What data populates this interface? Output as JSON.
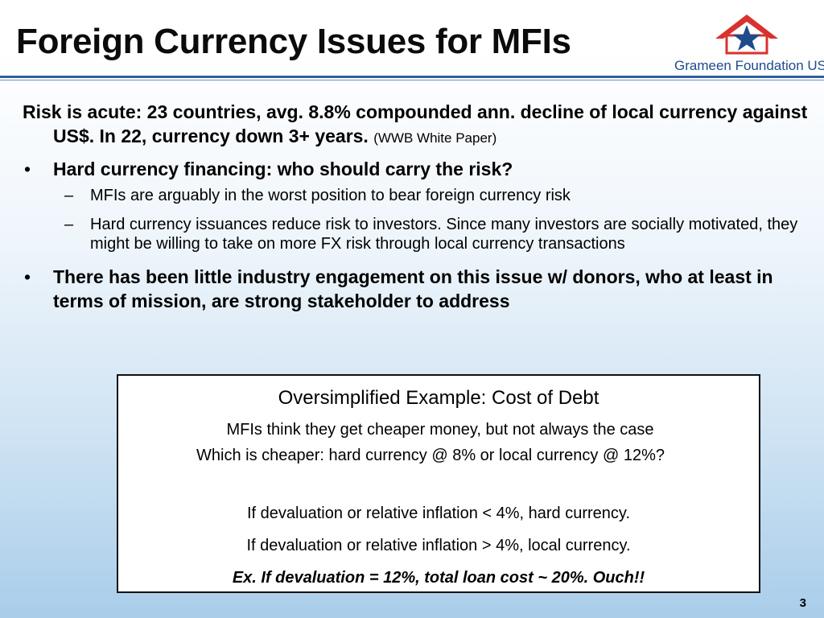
{
  "slide": {
    "title": "Foreign Currency Issues for MFIs",
    "page_number": "3"
  },
  "logo": {
    "text": "Grameen Foundation USA",
    "roof_color": "#d8322e",
    "star_color": "#1e4b8c"
  },
  "content": {
    "lead": {
      "text": "Risk is acute:  23 countries, avg. 8.8% compounded ann. decline of local currency against US$.  In 22, currency down 3+ years. ",
      "cite": "(WWB White Paper)"
    },
    "bullets": [
      {
        "marker": "•",
        "text": "Hard currency financing:  who should carry the risk?",
        "subs": [
          {
            "marker": "–",
            "text": "MFIs are arguably in the worst position to bear foreign currency risk"
          },
          {
            "marker": "–",
            "text": "Hard currency issuances reduce risk to investors.  Since many investors are socially motivated, they might be willing to take on more FX risk through local currency transactions"
          }
        ]
      },
      {
        "marker": "•",
        "text": "There has been little industry engagement on this issue w/ donors, who at least in terms of mission, are strong stakeholder to address"
      }
    ]
  },
  "example_box": {
    "title": "Oversimplified Example:  Cost of Debt",
    "line1": "MFIs think they get cheaper money, but not always the case",
    "line2": "Which is cheaper:  hard currency @ 8% or local currency @ 12%?",
    "line3": "If devaluation or relative inflation < 4%, hard currency.",
    "line4": "If devaluation or relative inflation > 4%, local currency.",
    "line5": "Ex. If devaluation = 12%, total loan cost ~ 20%.  Ouch!!"
  }
}
